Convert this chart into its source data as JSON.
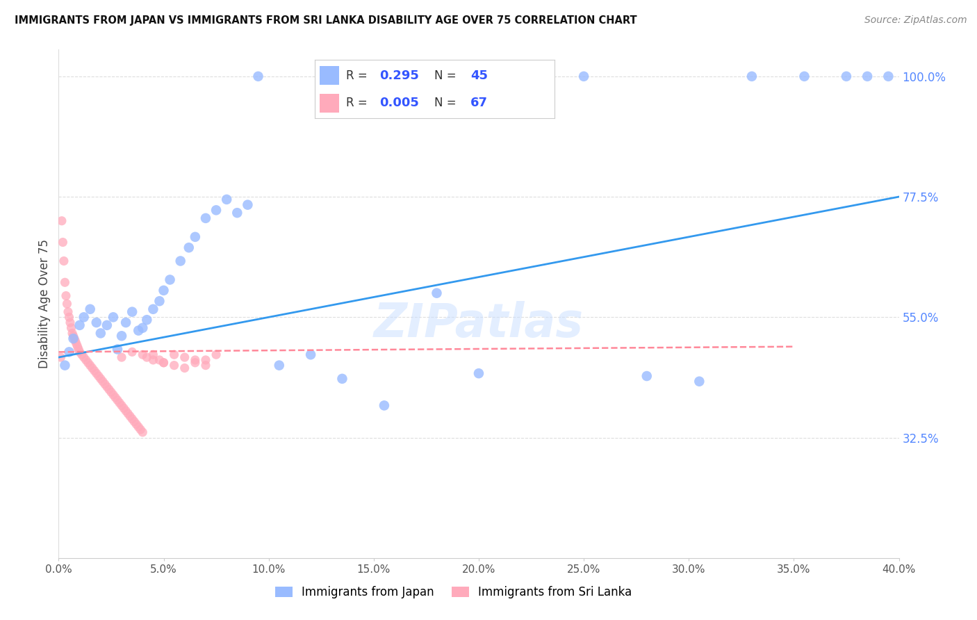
{
  "title": "IMMIGRANTS FROM JAPAN VS IMMIGRANTS FROM SRI LANKA DISABILITY AGE OVER 75 CORRELATION CHART",
  "source": "Source: ZipAtlas.com",
  "ylabel": "Disability Age Over 75",
  "xmin": 0.0,
  "xmax": 40.0,
  "ymin": 10.0,
  "ymax": 105.0,
  "yticks_right": [
    100.0,
    77.5,
    55.0,
    32.5
  ],
  "yticks_right_labels": [
    "100.0%",
    "77.5%",
    "55.0%",
    "32.5%"
  ],
  "legend_japan_r": "0.295",
  "legend_japan_n": "45",
  "legend_srilanka_r": "0.005",
  "legend_srilanka_n": "67",
  "japan_color": "#99BBFF",
  "srilanka_color": "#FFAABB",
  "trend_color_blue": "#3399EE",
  "trend_color_pink": "#FF8899",
  "watermark": "ZIPatlas",
  "japan_x": [
    0.3,
    0.5,
    0.7,
    1.0,
    1.2,
    1.5,
    1.8,
    2.0,
    2.3,
    2.6,
    2.8,
    3.0,
    3.2,
    3.5,
    3.8,
    4.0,
    4.2,
    4.5,
    4.8,
    5.0,
    5.3,
    5.8,
    6.2,
    6.5,
    7.0,
    7.5,
    8.0,
    8.5,
    9.0,
    9.5,
    10.5,
    12.0,
    13.5,
    15.5,
    18.0,
    20.0,
    22.5,
    25.0,
    28.0,
    30.5,
    33.0,
    35.5,
    37.5,
    38.5,
    39.5
  ],
  "japan_y": [
    46.0,
    48.5,
    51.0,
    53.5,
    55.0,
    56.5,
    54.0,
    52.0,
    53.5,
    55.0,
    49.0,
    51.5,
    54.0,
    56.0,
    52.5,
    53.0,
    54.5,
    56.5,
    58.0,
    60.0,
    62.0,
    65.5,
    68.0,
    70.0,
    73.5,
    75.0,
    77.0,
    74.5,
    76.0,
    100.0,
    46.0,
    48.0,
    43.5,
    38.5,
    59.5,
    44.5,
    100.0,
    100.0,
    44.0,
    43.0,
    100.0,
    100.0,
    100.0,
    100.0,
    100.0
  ],
  "srilanka_x": [
    0.1,
    0.15,
    0.2,
    0.25,
    0.3,
    0.35,
    0.4,
    0.45,
    0.5,
    0.55,
    0.6,
    0.65,
    0.7,
    0.75,
    0.8,
    0.85,
    0.9,
    0.95,
    1.0,
    1.1,
    1.2,
    1.3,
    1.4,
    1.5,
    1.6,
    1.7,
    1.8,
    1.9,
    2.0,
    2.1,
    2.2,
    2.3,
    2.4,
    2.5,
    2.6,
    2.7,
    2.8,
    2.9,
    3.0,
    3.1,
    3.2,
    3.3,
    3.4,
    3.5,
    3.6,
    3.7,
    3.8,
    3.9,
    4.0,
    4.2,
    4.5,
    4.8,
    5.0,
    5.5,
    6.0,
    6.5,
    7.0,
    3.0,
    3.5,
    4.0,
    4.5,
    5.0,
    5.5,
    6.0,
    6.5,
    7.0,
    7.5
  ],
  "srilanka_y": [
    47.5,
    73.0,
    69.0,
    65.5,
    61.5,
    59.0,
    57.5,
    56.0,
    55.0,
    54.0,
    53.0,
    52.0,
    51.5,
    51.0,
    50.5,
    50.0,
    49.5,
    49.0,
    48.5,
    48.0,
    47.5,
    47.0,
    46.5,
    46.0,
    45.5,
    45.0,
    44.5,
    44.0,
    43.5,
    43.0,
    42.5,
    42.0,
    41.5,
    41.0,
    40.5,
    40.0,
    39.5,
    39.0,
    38.5,
    38.0,
    37.5,
    37.0,
    36.5,
    36.0,
    35.5,
    35.0,
    34.5,
    34.0,
    33.5,
    47.5,
    48.0,
    47.0,
    46.5,
    46.0,
    45.5,
    47.0,
    46.0,
    47.5,
    48.5,
    48.0,
    47.0,
    46.5,
    48.0,
    47.5,
    46.5,
    47.0,
    48.0
  ],
  "japan_trend_x": [
    0,
    40
  ],
  "japan_trend_y": [
    47.5,
    77.5
  ],
  "srilanka_trend_x": [
    0,
    35
  ],
  "srilanka_trend_y": [
    48.5,
    49.5
  ],
  "grid_yticks": [
    32.5,
    55.0,
    77.5,
    100.0
  ],
  "xticks": [
    0,
    5,
    10,
    15,
    20,
    25,
    30,
    35,
    40
  ],
  "xtick_labels": [
    "0.0%",
    "5.0%",
    "10.0%",
    "15.0%",
    "20.0%",
    "25.0%",
    "30.0%",
    "35.0%",
    "40.0%"
  ]
}
